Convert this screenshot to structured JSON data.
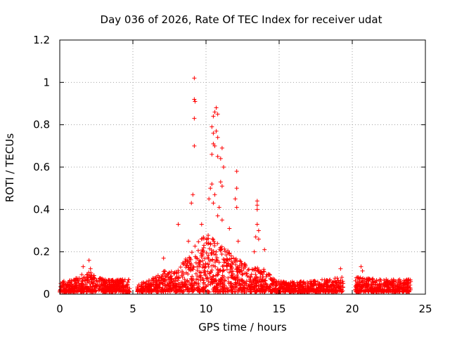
{
  "chart_data": {
    "type": "scatter",
    "title": "Day 036 of 2026, Rate Of TEC Index for receiver udat",
    "xlabel": "GPS time / hours",
    "ylabel": "ROTI / TECUs",
    "xlim": [
      0,
      25
    ],
    "ylim": [
      0,
      1.2
    ],
    "xticks": [
      "0",
      "5",
      "10",
      "15",
      "20",
      "25"
    ],
    "yticks": [
      "0",
      "0.2",
      "0.4",
      "0.6",
      "0.8",
      "1",
      "1.2"
    ],
    "grid": true,
    "marker": "+",
    "series": [
      {
        "name": "ROTI",
        "color": "#ff0000",
        "gaps_hours": [
          [
            4.8,
            5.3
          ],
          [
            19.4,
            20.2
          ]
        ],
        "outliers": [
          {
            "x": 9.2,
            "y": 1.02
          },
          {
            "x": 9.2,
            "y": 0.92
          },
          {
            "x": 9.25,
            "y": 0.91
          },
          {
            "x": 9.2,
            "y": 0.83
          },
          {
            "x": 9.2,
            "y": 0.7
          },
          {
            "x": 10.7,
            "y": 0.88
          },
          {
            "x": 10.6,
            "y": 0.86
          },
          {
            "x": 10.8,
            "y": 0.85
          },
          {
            "x": 10.5,
            "y": 0.84
          },
          {
            "x": 10.4,
            "y": 0.79
          },
          {
            "x": 10.7,
            "y": 0.77
          },
          {
            "x": 10.5,
            "y": 0.76
          },
          {
            "x": 10.8,
            "y": 0.74
          },
          {
            "x": 10.5,
            "y": 0.71
          },
          {
            "x": 10.6,
            "y": 0.7
          },
          {
            "x": 11.1,
            "y": 0.69
          },
          {
            "x": 10.4,
            "y": 0.66
          },
          {
            "x": 10.8,
            "y": 0.65
          },
          {
            "x": 11.0,
            "y": 0.64
          },
          {
            "x": 11.2,
            "y": 0.6
          },
          {
            "x": 12.1,
            "y": 0.58
          },
          {
            "x": 11.0,
            "y": 0.53
          },
          {
            "x": 10.4,
            "y": 0.52
          },
          {
            "x": 11.1,
            "y": 0.51
          },
          {
            "x": 10.3,
            "y": 0.5
          },
          {
            "x": 12.1,
            "y": 0.5
          },
          {
            "x": 9.1,
            "y": 0.47
          },
          {
            "x": 10.6,
            "y": 0.47
          },
          {
            "x": 10.2,
            "y": 0.45
          },
          {
            "x": 12.0,
            "y": 0.45
          },
          {
            "x": 13.5,
            "y": 0.44
          },
          {
            "x": 9.0,
            "y": 0.43
          },
          {
            "x": 10.5,
            "y": 0.43
          },
          {
            "x": 13.5,
            "y": 0.42
          },
          {
            "x": 10.9,
            "y": 0.41
          },
          {
            "x": 12.1,
            "y": 0.41
          },
          {
            "x": 13.5,
            "y": 0.4
          },
          {
            "x": 10.8,
            "y": 0.37
          },
          {
            "x": 11.1,
            "y": 0.35
          },
          {
            "x": 8.1,
            "y": 0.33
          },
          {
            "x": 9.7,
            "y": 0.33
          },
          {
            "x": 13.5,
            "y": 0.33
          },
          {
            "x": 11.6,
            "y": 0.31
          },
          {
            "x": 13.6,
            "y": 0.3
          },
          {
            "x": 13.4,
            "y": 0.27
          },
          {
            "x": 13.6,
            "y": 0.26
          },
          {
            "x": 8.8,
            "y": 0.25
          },
          {
            "x": 12.2,
            "y": 0.25
          },
          {
            "x": 14.0,
            "y": 0.21
          },
          {
            "x": 13.3,
            "y": 0.2
          },
          {
            "x": 2.0,
            "y": 0.16
          },
          {
            "x": 1.6,
            "y": 0.13
          },
          {
            "x": 2.1,
            "y": 0.12
          },
          {
            "x": 7.1,
            "y": 0.17
          },
          {
            "x": 19.2,
            "y": 0.12
          },
          {
            "x": 20.6,
            "y": 0.13
          },
          {
            "x": 20.7,
            "y": 0.11
          }
        ],
        "baseline_envelope": [
          {
            "x": 0,
            "y": 0.05
          },
          {
            "x": 1.0,
            "y": 0.06
          },
          {
            "x": 1.6,
            "y": 0.09
          },
          {
            "x": 2.0,
            "y": 0.1
          },
          {
            "x": 3.0,
            "y": 0.06
          },
          {
            "x": 4.7,
            "y": 0.06
          },
          {
            "x": 5.3,
            "y": 0.04
          },
          {
            "x": 6.5,
            "y": 0.07
          },
          {
            "x": 7.1,
            "y": 0.1
          },
          {
            "x": 8.0,
            "y": 0.1
          },
          {
            "x": 9.0,
            "y": 0.2
          },
          {
            "x": 10.0,
            "y": 0.28
          },
          {
            "x": 11.0,
            "y": 0.22
          },
          {
            "x": 12.0,
            "y": 0.17
          },
          {
            "x": 13.0,
            "y": 0.12
          },
          {
            "x": 14.0,
            "y": 0.11
          },
          {
            "x": 15.0,
            "y": 0.05
          },
          {
            "x": 17.0,
            "y": 0.05
          },
          {
            "x": 19.3,
            "y": 0.07
          },
          {
            "x": 20.3,
            "y": 0.07
          },
          {
            "x": 22.0,
            "y": 0.06
          },
          {
            "x": 24.0,
            "y": 0.06
          }
        ]
      }
    ]
  }
}
